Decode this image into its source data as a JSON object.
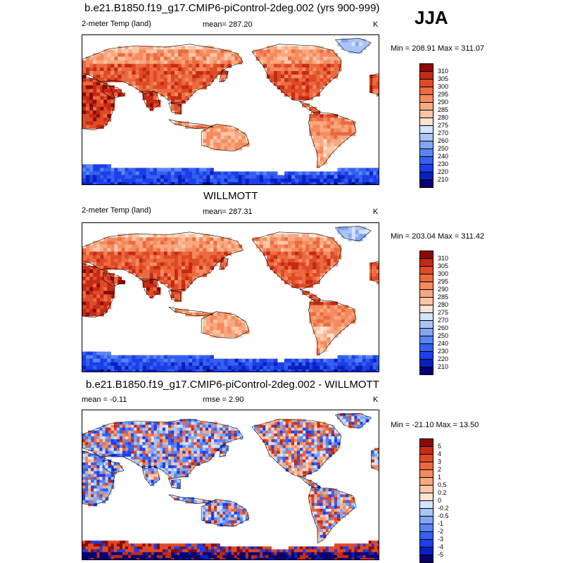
{
  "season": "JJA",
  "colors": {
    "temp_scale": [
      "#08006e",
      "#0a1fc0",
      "#1c3fe8",
      "#3560f0",
      "#5b83f2",
      "#82a5f4",
      "#aac4f7",
      "#d6e4fb",
      "#fde4d0",
      "#fcc6a6",
      "#f9a87f",
      "#f48b5e",
      "#ec6a40",
      "#df4a27",
      "#c52a14",
      "#8b0a0a"
    ],
    "diff_scale": [
      "#08006e",
      "#0a1fc0",
      "#1c3fe8",
      "#3560f0",
      "#5b83f2",
      "#82a5f4",
      "#aac4f7",
      "#d6e4fb",
      "#fde4d0",
      "#fcc6a6",
      "#f9a87f",
      "#f48b5e",
      "#ec6a40",
      "#df4a27",
      "#c52a14",
      "#8b0a0a"
    ],
    "land_outline": "#000000",
    "ocean": "#ffffff"
  },
  "panels": [
    {
      "id": "model",
      "title": "b.e21.B1850.f19_g17.CMIP6-piControl-2deg.002 (yrs 900-999)",
      "left_label": "2-meter Temp (land)",
      "center_label": "mean= 287.20",
      "units": "K",
      "minmax": "Min = 208.91 Max = 311.07",
      "scale_type": "temp",
      "levels": [
        "210",
        "220",
        "230",
        "240",
        "250",
        "260",
        "270",
        "275",
        "280",
        "285",
        "290",
        "295",
        "300",
        "305",
        "310"
      ]
    },
    {
      "id": "obs",
      "title": "WILLMOTT",
      "left_label": "2-meter Temp (land)",
      "center_label": "mean= 287.31",
      "units": "K",
      "minmax": "Min = 203.04 Max = 311.42",
      "scale_type": "temp",
      "levels": [
        "210",
        "220",
        "230",
        "240",
        "250",
        "260",
        "270",
        "275",
        "280",
        "285",
        "290",
        "295",
        "300",
        "305",
        "310"
      ]
    },
    {
      "id": "diff",
      "title": "b.e21.B1850.f19_g17.CMIP6-piControl-2deg.002 - WILLMOTT",
      "left_label": "mean =  -0.11",
      "center_label": "rmse =   2.90",
      "units": "K",
      "minmax": "Min = -21.10 Max =  13.50",
      "scale_type": "diff",
      "levels": [
        "-5",
        "-4",
        "-3",
        "-2",
        "-1",
        "-0.5",
        "-0.2",
        "0",
        "0.2",
        "0.5",
        "1",
        "2",
        "3",
        "4",
        "5"
      ]
    }
  ]
}
